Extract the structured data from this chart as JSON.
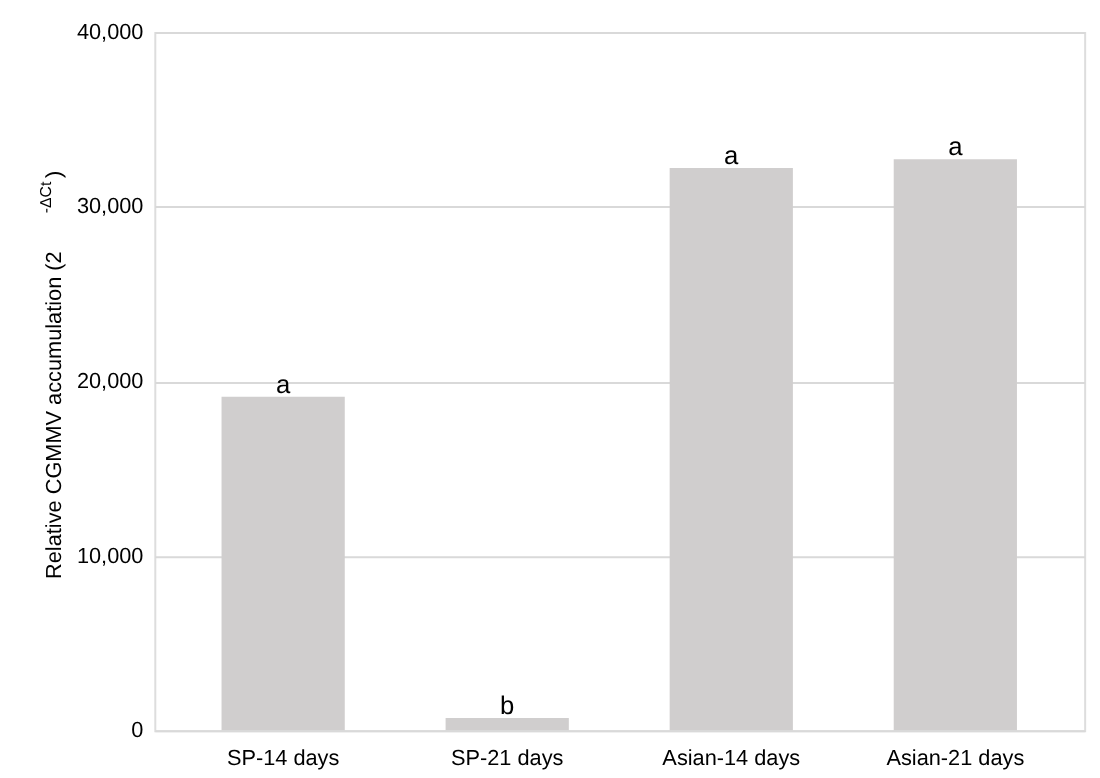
{
  "chart_data": {
    "type": "bar",
    "ylabel": "Relative CGMMV accumulation (2$^{-ΔCt}$)",
    "categories": [
      "SP-14 days",
      "SP-21 days",
      "Asian-14 days",
      "Asian-21 days"
    ],
    "values": [
      19100,
      700,
      32200,
      32700
    ],
    "color": "#d0cece",
    "ylim": [
      0,
      40000
    ],
    "yticks": [
      0,
      {
        "value": 10000,
        "label": "10,000"
      },
      {
        "value": 20000,
        "label": "20,000"
      },
      {
        "value": 30000,
        "label": "30,000"
      },
      {
        "value": 40000,
        "label": "40,000"
      }
    ],
    "grid": "y",
    "annotations": [
      {
        "text": "a",
        "x": "SP-14 days",
        "y": 19100
      },
      {
        "text": "b",
        "x": "SP-21 days",
        "y": 700
      },
      {
        "text": "a",
        "x": "Asian-14 days",
        "y": 32200
      },
      {
        "text": "a",
        "x": "Asian-21 days",
        "y": 32700
      }
    ]
  }
}
